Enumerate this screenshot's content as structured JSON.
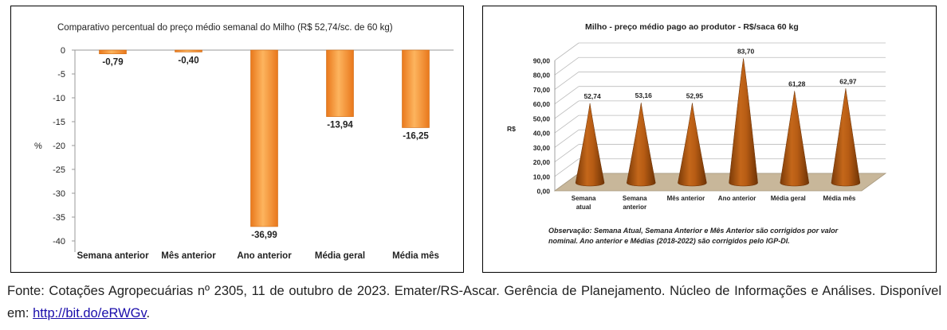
{
  "chart_data": [
    {
      "type": "bar",
      "title": "Comparativo percentual do preço médio semanal do Milho (R$ 52,74/sc. de 60 kg)",
      "ylabel": "%",
      "categories": [
        "Semana anterior",
        "Mês anterior",
        "Ano anterior",
        "Média geral",
        "Média mês"
      ],
      "values": [
        -0.79,
        -0.4,
        -36.99,
        -13.94,
        -16.25
      ],
      "value_labels": [
        "-0,79",
        "-0,40",
        "-36,99",
        "-13,94",
        "-16,25"
      ],
      "ylim": [
        -40,
        0
      ],
      "yticks": [
        0,
        -5,
        -10,
        -15,
        -20,
        -25,
        -30,
        -35,
        -40
      ],
      "ytick_labels": [
        "0",
        "-5",
        "-10",
        "-15",
        "-20",
        "-25",
        "-30",
        "-35",
        "-40"
      ],
      "grid": false,
      "legend": "none",
      "bar_color": "#F28C28"
    },
    {
      "type": "bar",
      "style": "3d-cone",
      "title": "Milho - preço médio pago ao produtor - R$/saca 60 kg",
      "ylabel": "R$",
      "categories": [
        "Semana atual",
        "Semana anterior",
        "Mês anterior",
        "Ano anterior",
        "Média geral",
        "Média mês"
      ],
      "category_lines": [
        [
          "Semana",
          "atual"
        ],
        [
          "Semana",
          "anterior"
        ],
        [
          "Mês anterior"
        ],
        [
          "Ano anterior"
        ],
        [
          "Média geral"
        ],
        [
          "Média mês"
        ]
      ],
      "values": [
        52.74,
        53.16,
        52.95,
        83.7,
        61.28,
        62.97
      ],
      "value_labels": [
        "52,74",
        "53,16",
        "52,95",
        "83,70",
        "61,28",
        "62,97"
      ],
      "ylim": [
        0,
        90
      ],
      "yticks": [
        0,
        10,
        20,
        30,
        40,
        50,
        60,
        70,
        80,
        90
      ],
      "ytick_labels": [
        "0,00",
        "10,00",
        "20,00",
        "30,00",
        "40,00",
        "50,00",
        "60,00",
        "70,00",
        "80,00",
        "90,00"
      ],
      "grid": true,
      "legend": "none",
      "cone_color": "#A8520F",
      "floor_color": "#C8B79A",
      "note": "Observação: Semana Atual, Semana Anterior e Mês Anterior são corrigidos por valor nominal. Ano anterior e Médias (2018-2022) são corrigidos pelo IGP-DI."
    }
  ],
  "caption": {
    "text": "Fonte: Cotações Agropecuárias nº 2305, 11 de outubro de 2023. Emater/RS-Ascar. Gerência de Planejamento. Núcleo de Informações e Análises. Disponível em: ",
    "link": "http://bit.do/eRWGv",
    "end": "."
  }
}
